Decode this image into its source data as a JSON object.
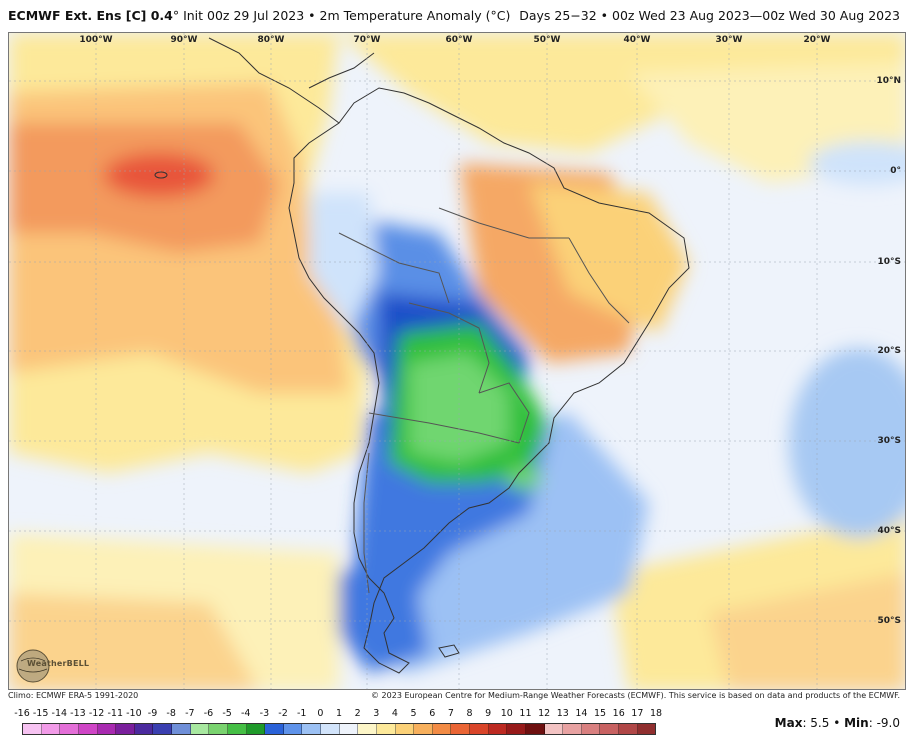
{
  "header": {
    "title_bold": "ECMWF Ext. Ens [C] 0.4",
    "title_rest": "° Init 00z 29 Jul 2023 • 2m Temperature Anomaly (°C)",
    "valid": "Days 25−32 • 00z Wed 23 Aug 2023—00z Wed 30 Aug 2023"
  },
  "map": {
    "lon_labels": [
      "100°W",
      "90°W",
      "80°W",
      "70°W",
      "60°W",
      "50°W",
      "40°W",
      "30°W",
      "20°W"
    ],
    "lat_labels": [
      "10°N",
      "0°",
      "10°S",
      "20°S",
      "30°S",
      "40°S",
      "50°S"
    ],
    "colors": {
      "strong_warm": "#e8553a",
      "warm": "#f39a5d",
      "mild_warm": "#fbd38d",
      "slight_warm": "#fdf1b8",
      "neutral": "#eef3fb",
      "slight_cool": "#cfe3fb",
      "cool": "#8bb8f0",
      "cold": "#3f78e0",
      "very_cold": "#1f4fc9",
      "green_light": "#6fd66f",
      "green": "#2fbf3a",
      "land_border": "#333333"
    }
  },
  "logo": {
    "text": "WeatherBELL",
    "icon": "weatherbell-globe-icon"
  },
  "footer": {
    "climo": "Climo: ECMWF ERA-5 1991-2020",
    "copyright": "© 2023 European Centre for Medium-Range Weather Forecasts (ECMWF). This service is based on data and products of the ECMWF."
  },
  "colorbar": {
    "labels": [
      "-16",
      "-15",
      "-14",
      "-13",
      "-12",
      "-11",
      "-10",
      "-9",
      "-8",
      "-7",
      "-6",
      "-5",
      "-4",
      "-3",
      "-2",
      "-1",
      "0",
      "1",
      "2",
      "3",
      "4",
      "5",
      "6",
      "7",
      "8",
      "9",
      "10",
      "11",
      "12",
      "13",
      "14",
      "15",
      "16",
      "17",
      "18"
    ],
    "colors": [
      "#f7c3f2",
      "#f29be8",
      "#e46fd8",
      "#cf45c6",
      "#a82ab0",
      "#7a1f9c",
      "#4b2a9e",
      "#3a3fb0",
      "#6f8fd8",
      "#a8e8a0",
      "#7ad36f",
      "#45bf45",
      "#1f9a2a",
      "#2a62d8",
      "#5f93ea",
      "#9cc1f4",
      "#d2e4fb",
      "#eef3fb",
      "#fdf6c8",
      "#fde99a",
      "#fbd178",
      "#f7b05d",
      "#f28b45",
      "#ea6535",
      "#d9452a",
      "#bd2a22",
      "#971a1a",
      "#6e1010",
      "#f3c3c3",
      "#e8a2a2",
      "#d98080",
      "#c86262",
      "#b04747",
      "#902f2f"
    ]
  },
  "stats": {
    "max_label": "Max",
    "max_value": ": 5.5",
    "min_label": "Min",
    "min_value": ": -9.0",
    "separator": " • "
  }
}
